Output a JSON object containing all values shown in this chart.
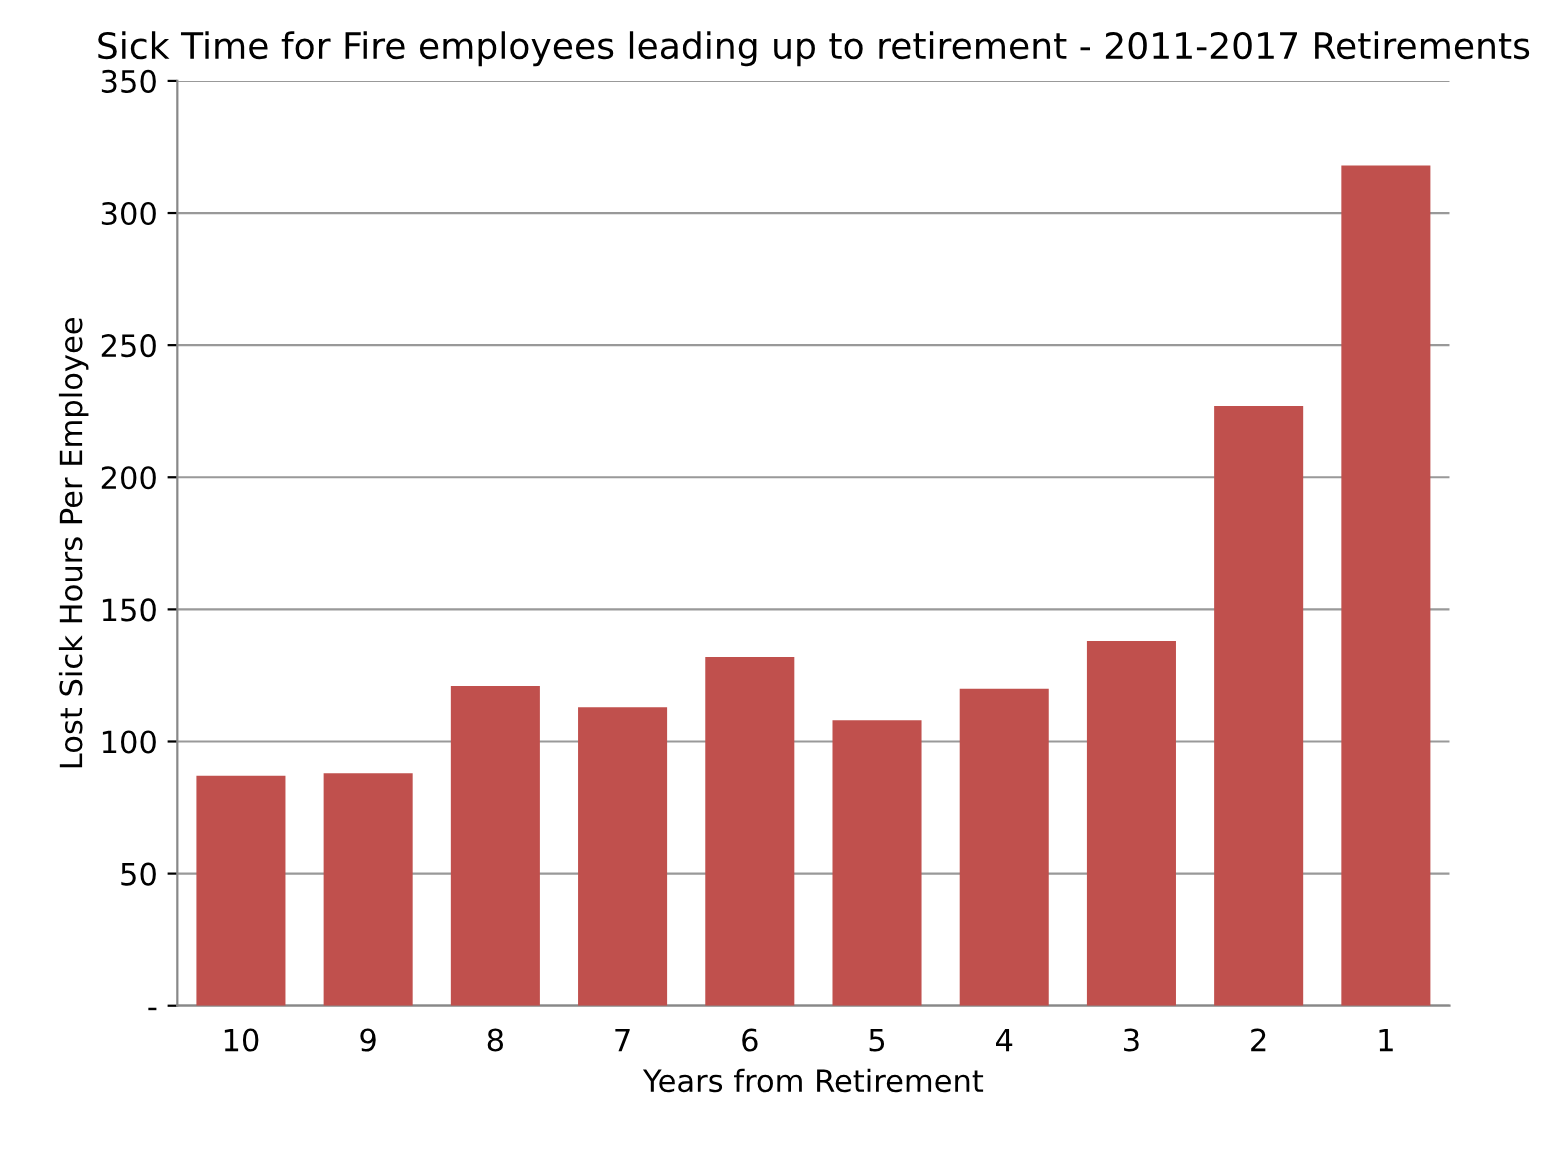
{
  "chart_data": {
    "type": "bar",
    "title": "Sick Time for Fire employees leading up to retirement - 2011-2017 Retirements",
    "xlabel": "Years from Retirement",
    "ylabel": "Lost Sick Hours Per Employee",
    "categories": [
      "10",
      "9",
      "8",
      "7",
      "6",
      "5",
      "4",
      "3",
      "2",
      "1"
    ],
    "values": [
      87,
      88,
      121,
      113,
      132,
      108,
      120,
      138,
      227,
      318
    ],
    "color": "#c0504d",
    "ylim": [
      0,
      350
    ],
    "yticks": [
      {
        "value": 0,
        "label": "-"
      },
      50,
      100,
      150,
      200,
      250,
      300,
      350
    ],
    "grid": "y",
    "legend": false
  }
}
